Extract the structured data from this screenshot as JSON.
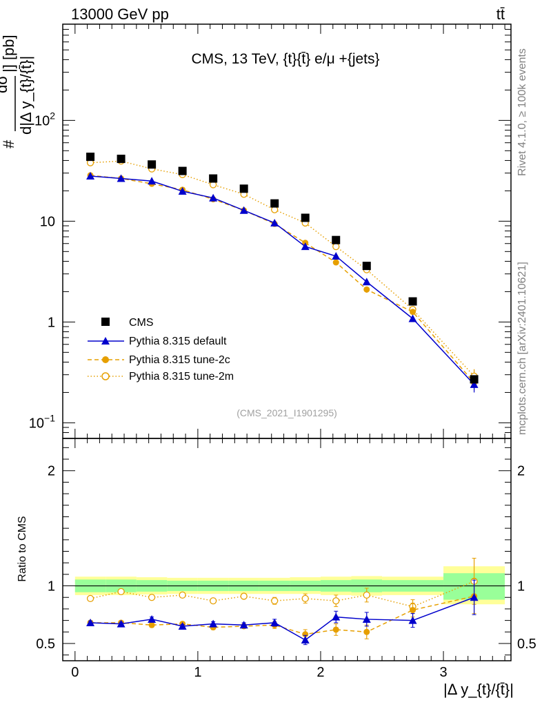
{
  "header": {
    "left_label": "13000 GeV pp",
    "right_label": "tt̄"
  },
  "side_labels": {
    "rivet": "Rivet 4.1.0, ≥ 100k events",
    "mcplots": "mcplots.cern.ch [arXiv:2401.10621]"
  },
  "colors": {
    "cms": "#000000",
    "default": "#0000cc",
    "tune2c": "#e69f00",
    "tune2m": "#e69f00",
    "band_inner": "#99ff99",
    "band_outer": "#ffff99"
  },
  "chart_data": {
    "type": "line",
    "title": "CMS, 13 TeV, {t}{t̄} e/μ +{jets}",
    "watermark": "(CMS_2021_I1901295)",
    "xlabel": "|Δ y_{t}/{t̄}|",
    "ylabel": "d|Δ y_{t}/{t̄}|",
    "ylabel_numerator": "dσ",
    "ylabel_prefix": "#",
    "ylabel_suffix": "|] [pb]",
    "ratio_ylabel": "Ratio to CMS",
    "xlim": [
      -0.1,
      3.55
    ],
    "ylim": [
      0.07,
      900
    ],
    "yscale": "log",
    "ratio_ylim": [
      0.35,
      2.28
    ],
    "x_ticks": [
      "0",
      "1",
      "2",
      "3"
    ],
    "y_ticks": [
      "10",
      "1"
    ],
    "ratio_y_ticks": [
      "2",
      "1",
      "0.5"
    ],
    "bin_edges": [
      0,
      0.25,
      0.5,
      0.75,
      1.0,
      1.25,
      1.5,
      1.75,
      2.0,
      2.25,
      2.5,
      3.0,
      3.5
    ],
    "x": [
      0.125,
      0.375,
      0.625,
      0.875,
      1.125,
      1.375,
      1.625,
      1.875,
      2.125,
      2.375,
      2.75,
      3.25
    ],
    "legend": [
      "CMS",
      "Pythia 8.315 default",
      "Pythia 8.315 tune-2c",
      "Pythia 8.315 tune-2m"
    ],
    "legend_position": "bottom-left",
    "series": [
      {
        "name": "CMS",
        "style": "square",
        "values": [
          43.5,
          41.5,
          36.5,
          31.5,
          26.5,
          21,
          15,
          10.8,
          6.5,
          3.6,
          1.6,
          0.27
        ]
      },
      {
        "name": "Pythia 8.315 default",
        "style": "triangle-solid",
        "values": [
          28,
          26.5,
          25,
          19.8,
          17,
          12.8,
          9.6,
          5.6,
          4.5,
          2.5,
          1.08,
          0.24
        ],
        "errors": [
          0.5,
          0.5,
          0.5,
          0.4,
          0.4,
          0.3,
          0.25,
          0.2,
          0.2,
          0.15,
          0.07,
          0.04
        ],
        "ratio": [
          0.68,
          0.67,
          0.71,
          0.65,
          0.67,
          0.66,
          0.68,
          0.53,
          0.73,
          0.71,
          0.7,
          0.9
        ],
        "ratio_errors": [
          0.015,
          0.015,
          0.02,
          0.015,
          0.02,
          0.02,
          0.03,
          0.04,
          0.05,
          0.06,
          0.06,
          0.15
        ]
      },
      {
        "name": "Pythia 8.315 tune-2c",
        "style": "circle-dashed",
        "values": [
          28.5,
          26.5,
          23.5,
          20.5,
          16.5,
          12.8,
          9.4,
          6.1,
          3.9,
          2.1,
          1.26,
          0.25
        ],
        "errors": [
          0.5,
          0.5,
          0.5,
          0.4,
          0.4,
          0.3,
          0.25,
          0.2,
          0.2,
          0.15,
          0.07,
          0.04
        ],
        "ratio": [
          0.68,
          0.68,
          0.66,
          0.67,
          0.64,
          0.65,
          0.66,
          0.58,
          0.62,
          0.6,
          0.79,
          0.91
        ],
        "ratio_errors": [
          0.015,
          0.015,
          0.02,
          0.015,
          0.02,
          0.02,
          0.03,
          0.04,
          0.05,
          0.06,
          0.06,
          0.15
        ]
      },
      {
        "name": "Pythia 8.315 tune-2m",
        "style": "open-circle-dotted",
        "values": [
          38,
          39.5,
          33,
          29,
          23,
          18.5,
          13,
          9.6,
          5.6,
          3.3,
          1.33,
          0.29
        ],
        "errors": [
          0.6,
          0.6,
          0.5,
          0.5,
          0.4,
          0.3,
          0.3,
          0.25,
          0.2,
          0.15,
          0.07,
          0.05
        ],
        "ratio": [
          0.89,
          0.95,
          0.9,
          0.92,
          0.87,
          0.91,
          0.87,
          0.89,
          0.87,
          0.92,
          0.82,
          1.04
        ],
        "ratio_errors": [
          0.015,
          0.015,
          0.02,
          0.015,
          0.02,
          0.02,
          0.03,
          0.04,
          0.05,
          0.06,
          0.06,
          0.2
        ]
      }
    ],
    "bands": {
      "inner_lo": [
        0.945,
        0.945,
        0.95,
        0.955,
        0.955,
        0.955,
        0.955,
        0.955,
        0.95,
        0.945,
        0.95,
        0.88
      ],
      "inner_hi": [
        1.055,
        1.055,
        1.05,
        1.045,
        1.045,
        1.045,
        1.045,
        1.045,
        1.05,
        1.055,
        1.05,
        1.11
      ],
      "outer_lo": [
        0.92,
        0.92,
        0.925,
        0.93,
        0.93,
        0.93,
        0.93,
        0.93,
        0.92,
        0.915,
        0.92,
        0.84
      ],
      "outer_hi": [
        1.08,
        1.08,
        1.075,
        1.07,
        1.07,
        1.07,
        1.07,
        1.075,
        1.08,
        1.085,
        1.08,
        1.17
      ]
    }
  }
}
